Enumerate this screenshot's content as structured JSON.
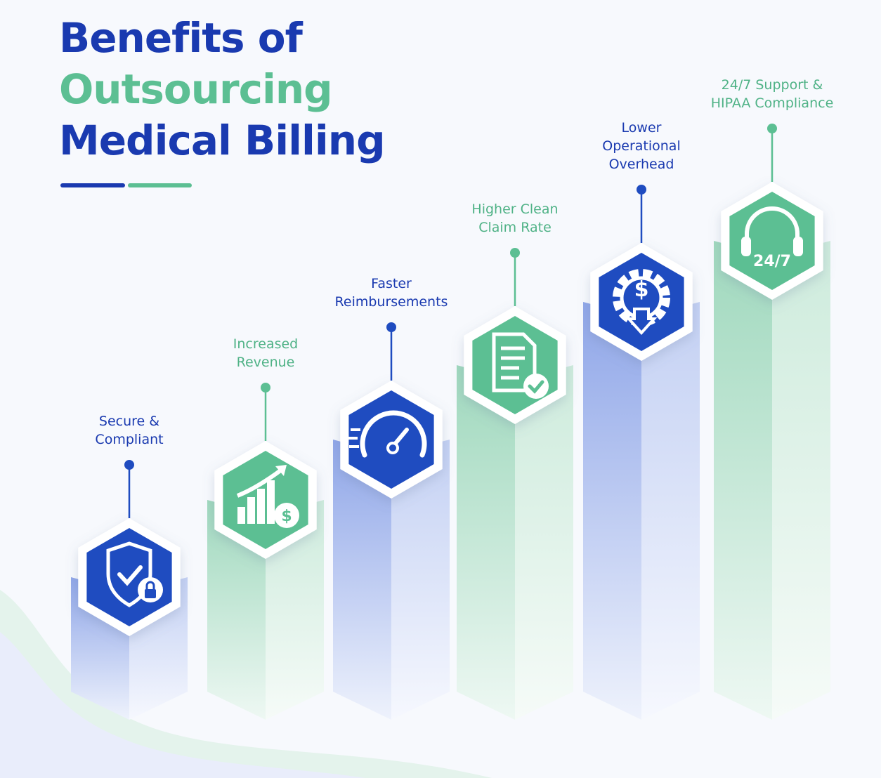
{
  "header": {
    "title_lines": [
      "Benefits of",
      "Outsourcing",
      "Medical Billing"
    ]
  },
  "steps": [
    {
      "label_lines": [
        "Secure &",
        "Compliant"
      ]
    },
    {
      "label_lines": [
        "Increased",
        "Revenue"
      ]
    },
    {
      "label_lines": [
        "Faster",
        "Reimbursements"
      ]
    },
    {
      "label_lines": [
        "Higher Clean",
        "Claim Rate"
      ]
    },
    {
      "label_lines": [
        "Lower",
        "Operational",
        "Overhead"
      ]
    },
    {
      "label_lines": [
        "24/7 Support &",
        "HIPAA Compliance"
      ],
      "icon_text": "24/7"
    }
  ]
}
